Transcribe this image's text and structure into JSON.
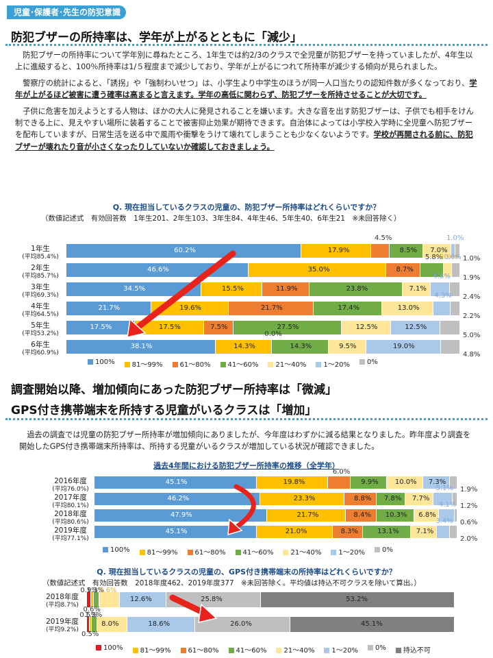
{
  "tag": "児童･保護者･先生の防犯意識",
  "section1": {
    "title": "防犯ブザーの所持率は、学年が上がるとともに「減少」",
    "paragraphs": [
      "防犯ブザーの所持率について学年別に尋ねたところ、1年生では約2/3のクラスで全児童が防犯ブザーを持っていましたが、4年生以上に進級すると、100％所持率は1/５程度まで減少しており、学年が上がるにつれて所持率が減少する傾向が見られました。",
      "警察庁の統計によると、「誘拐」や「強制わいせつ」は、小学生より中学生のほうが同一人口当たりの認知件数が多くなっており、学年が上がるほど被害に遭う確率は高まると言えます。学年の高低に関わらず、防犯ブザーを所持させることが大切です。",
      "子供に危害を加えようとする人物は、ほかの大人に発見されることを嫌います。大きな音を出す防犯ブザーは、子供でも相手をけん制できる上に、見えやすい場所に装着することで被害抑止効果が期待できます。自治体によっては小学校入学時に全児童へ防犯ブザーを配布していますが、日常生活を送る中で風雨や衝撃をうけて壊れてしまうことも少なくないようです。学校が再開される前に、防犯ブザーが壊れたり音が小さくなったりしていないか確認しておきましょう。"
    ]
  },
  "chart1_heading": {
    "question": "Q. 現在担当しているクラスの児童の、防犯ブザー所持率はどれくらいですか？",
    "note": "（数値記述式　有効回答数　1年生201、2年生103、3年生84、4年生46、5年生40、6年生21　※未回答除く）"
  },
  "section2": {
    "title_line1": "調査開始以降、増加傾向にあった防犯ブザー所持率は「微減」",
    "title_line2": "GPS付き携帯端末を所持する児童がいるクラスは「増加」",
    "paragraph": "過去の調査では児童の防犯ブザー所持率が増加傾向にありましたが、今年度はわずかに減る結果となりました。昨年度より調査を開始したGPS付き携帯端末所持率は、所持する児童がいるクラスが増加している状況が確認できました。"
  },
  "chart2_heading": {
    "question": "過去4年間における防犯ブザー所持率の推移（全学年）"
  },
  "chart3_heading": {
    "question": "Q. 現在担当しているクラスの児童の、GPS付き携帯端末の所持率はどれくらいですか？",
    "note": "（数値記述式　有効回答数　2018年度462、2019年度377　※未回答除く。平均値は持込不可クラスを除いて算出。）"
  },
  "colors": {
    "c100": "#5b9bd5",
    "c81": "#ffc000",
    "c61": "#ed7d31",
    "c41": "#70ad47",
    "c21": "#ffe699",
    "c1": "#a9c8ea",
    "c0": "#bfbfbf",
    "cno": "#808080",
    "red100": "#e41a1c",
    "arrow": "#e8231b"
  },
  "chart_data": [
    {
      "type": "bar",
      "orientation": "horizontal-stacked",
      "categories": [
        "1年生",
        "2年生",
        "3年生",
        "4年生",
        "5年生",
        "6年生"
      ],
      "category_sub": [
        "(平均85.4%)",
        "(平均85.7%)",
        "(平均69.3%)",
        "(平均64.5%)",
        "(平均53.2%)",
        "(平均60.9%)"
      ],
      "series": [
        {
          "name": "100%",
          "values": [
            60.2,
            46.6,
            34.5,
            21.7,
            17.5,
            38.1
          ]
        },
        {
          "name": "81～99%",
          "values": [
            17.9,
            35.0,
            15.5,
            19.6,
            17.5,
            14.3
          ]
        },
        {
          "name": "61～80%",
          "values": [
            4.5,
            8.7,
            11.9,
            21.7,
            7.5,
            0.0
          ]
        },
        {
          "name": "41～60%",
          "values": [
            8.5,
            5.8,
            23.8,
            17.4,
            27.5,
            14.3
          ]
        },
        {
          "name": "21～40%",
          "values": [
            7.0,
            1.9,
            7.1,
            13.0,
            12.5,
            9.5
          ]
        },
        {
          "name": "1～20%",
          "values": [
            1.0,
            0.0,
            4.8,
            4.3,
            12.5,
            19.0
          ]
        },
        {
          "name": "0%",
          "values": [
            1.0,
            1.9,
            2.4,
            2.2,
            5.0,
            4.8
          ]
        }
      ],
      "labels": [
        [
          "60.2%",
          "17.9%",
          "4.5%",
          "8.5%",
          "7.0%",
          "1.0%",
          "1.0%"
        ],
        [
          "46.6%",
          "35.0%",
          "8.7%",
          "5.8%",
          "1.9%",
          "0.0%",
          "1.9%"
        ],
        [
          "34.5%",
          "15.5%",
          "11.9%",
          "23.8%",
          "7.1%",
          "4.8%",
          "2.4%"
        ],
        [
          "21.7%",
          "19.6%",
          "21.7%",
          "17.4%",
          "13.0%",
          "4.3%",
          "2.2%"
        ],
        [
          "17.5%",
          "17.5%",
          "7.5%",
          "27.5%",
          "12.5%",
          "12.5%",
          "5.0%"
        ],
        [
          "38.1%",
          "14.3%",
          "0.0%",
          "14.3%",
          "9.5%",
          "19.0%",
          "4.8%"
        ]
      ],
      "legend": [
        "100%",
        "81～99%",
        "61～80%",
        "41～60%",
        "21～40%",
        "1～20%",
        "0%"
      ],
      "xlim": [
        0,
        100
      ]
    },
    {
      "type": "bar",
      "orientation": "horizontal-stacked",
      "categories": [
        "2016年度",
        "2017年度",
        "2018年度",
        "2019年度"
      ],
      "category_sub": [
        "(平均76.0%)",
        "(平均80.1%)",
        "(平均80.6%)",
        "(平均77.1%)"
      ],
      "series": [
        {
          "name": "100%",
          "values": [
            45.1,
            46.2,
            47.9,
            45.1
          ]
        },
        {
          "name": "81～99%",
          "values": [
            19.8,
            23.3,
            21.7,
            21.0
          ]
        },
        {
          "name": "61～80%",
          "values": [
            6.0,
            8.8,
            8.4,
            8.3
          ]
        },
        {
          "name": "41～60%",
          "values": [
            9.9,
            7.8,
            10.3,
            13.1
          ]
        },
        {
          "name": "21～40%",
          "values": [
            10.0,
            7.7,
            6.8,
            7.1
          ]
        },
        {
          "name": "1～20%",
          "values": [
            7.3,
            5.1,
            4.1,
            3.4
          ]
        },
        {
          "name": "0%",
          "values": [
            1.9,
            1.2,
            0.6,
            2.0
          ]
        }
      ],
      "labels": [
        [
          "45.1%",
          "19.8%",
          "6.0%",
          "9.9%",
          "10.0%",
          "7.3%",
          "1.9%"
        ],
        [
          "46.2%",
          "23.3%",
          "8.8%",
          "7.8%",
          "7.7%",
          "5.1%",
          "1.2%"
        ],
        [
          "47.9%",
          "21.7%",
          "8.4%",
          "10.3%",
          "6.8%",
          "4.1%",
          "0.6%"
        ],
        [
          "45.1%",
          "21.0%",
          "8.3%",
          "13.1%",
          "7.1%",
          "3.4%",
          "2.0%"
        ]
      ],
      "legend": [
        "100%",
        "81～99%",
        "61～80%",
        "41～60%",
        "21～40%",
        "1～20%",
        "0%"
      ],
      "xlim": [
        0,
        100
      ]
    },
    {
      "type": "bar",
      "orientation": "horizontal-stacked",
      "categories": [
        "2018年度",
        "2019年度"
      ],
      "category_sub": [
        "(平均8.7%)",
        "(平均9.2%)"
      ],
      "series": [
        {
          "name": "100%",
          "values": [
            0.9,
            0.5
          ]
        },
        {
          "name": "81～99%",
          "values": [
            0.6,
            0.5
          ]
        },
        {
          "name": "61～80%",
          "values": [
            0.0,
            0.0
          ]
        },
        {
          "name": "41～60%",
          "values": [
            1.3,
            1.3
          ]
        },
        {
          "name": "21～40%",
          "values": [
            5.6,
            8.0
          ]
        },
        {
          "name": "1～20%",
          "values": [
            12.6,
            18.6
          ]
        },
        {
          "name": "0%",
          "values": [
            25.8,
            26.0
          ]
        },
        {
          "name": "持込不可",
          "values": [
            53.2,
            45.1
          ]
        }
      ],
      "labels": [
        [
          "0.9%",
          "0.6%",
          "",
          "1.3%",
          "5.6%",
          "12.6%",
          "25.8%",
          "53.2%"
        ],
        [
          "0.5%",
          "0.5%",
          "",
          "1.3%",
          "8.0%",
          "18.6%",
          "26.0%",
          "45.1%"
        ]
      ],
      "legend": [
        "100%",
        "81～99%",
        "61～80%",
        "41～60%",
        "21～40%",
        "1～20%",
        "0%",
        "持込不可"
      ],
      "xlim": [
        0,
        100
      ]
    }
  ]
}
